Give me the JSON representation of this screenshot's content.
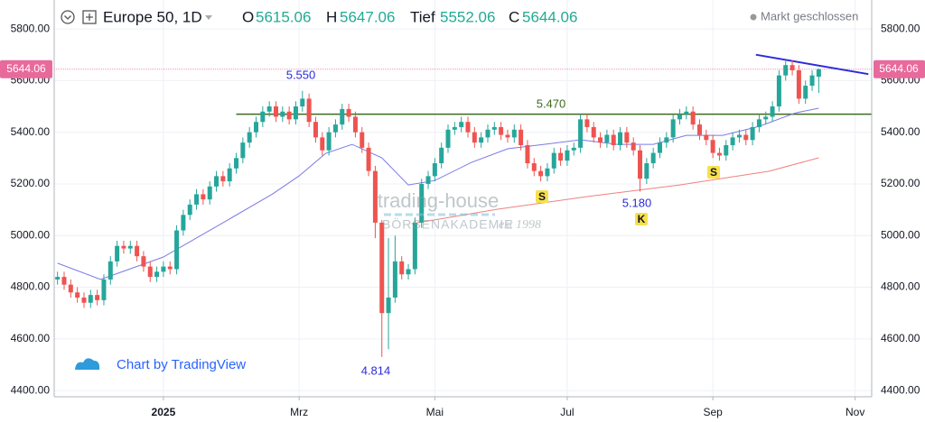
{
  "chart_data": {
    "type": "candlestick",
    "title": "Europe 50, 1D",
    "status": "Markt geschlossen",
    "ohlc_labels": [
      "O",
      "H",
      "Tief",
      "C"
    ],
    "credit": "Chart by TradingView",
    "watermark": [
      "trading-house",
      "BÖRSENAKADEMIE",
      "est 1998"
    ],
    "up_color": "#26a69a",
    "down_color": "#ef5350",
    "last_price_color": "#e8699c",
    "x": [
      -32,
      -30,
      -28,
      -26,
      -24,
      -22,
      -20,
      -18,
      -16,
      -14,
      -12,
      -10,
      -8,
      -6,
      -4,
      -2,
      0,
      2,
      4,
      6,
      8,
      10,
      12,
      14,
      16,
      18,
      20,
      22,
      24,
      26,
      28,
      30,
      32,
      34,
      36,
      38,
      40,
      42,
      44,
      46,
      48,
      50,
      52,
      54,
      56,
      58,
      60,
      62,
      64,
      66,
      68,
      70,
      72,
      74,
      76,
      78,
      80,
      82,
      84,
      86,
      88,
      90,
      92,
      94,
      96,
      98,
      100,
      102,
      104,
      106,
      108,
      110,
      112,
      114,
      116,
      118,
      120,
      122,
      124,
      126,
      128,
      130,
      132,
      134,
      136,
      138,
      140,
      142,
      144,
      146,
      148,
      150,
      152,
      154,
      156,
      158,
      160,
      162,
      164,
      166,
      168,
      170,
      172,
      174,
      176,
      178,
      180,
      182,
      184,
      186,
      188,
      190,
      192,
      194,
      196,
      198
    ],
    "open": [
      4830,
      4840,
      4810,
      4780,
      4760,
      4740,
      4770,
      4750,
      4830,
      4900,
      4960,
      4950,
      4960,
      4920,
      4880,
      4840,
      4860,
      4880,
      4870,
      5020,
      5080,
      5120,
      5160,
      5140,
      5190,
      5230,
      5210,
      5260,
      5300,
      5360,
      5400,
      5440,
      5480,
      5500,
      5460,
      5480,
      5450,
      5500,
      5530,
      5440,
      5380,
      5330,
      5400,
      5430,
      5490,
      5460,
      5400,
      5340,
      5250,
      5050,
      4700,
      4760,
      4900,
      4850,
      4870,
      5050,
      5200,
      5230,
      5280,
      5340,
      5410,
      5420,
      5440,
      5400,
      5360,
      5380,
      5410,
      5420,
      5390,
      5380,
      5410,
      5350,
      5280,
      5250,
      5230,
      5260,
      5320,
      5290,
      5330,
      5340,
      5450,
      5420,
      5380,
      5360,
      5390,
      5350,
      5400,
      5360,
      5330,
      5220,
      5280,
      5320,
      5360,
      5380,
      5450,
      5470,
      5480,
      5430,
      5390,
      5370,
      5320,
      5310,
      5350,
      5380,
      5390,
      5370,
      5420,
      5450,
      5460,
      5500,
      5620,
      5660,
      5640,
      5530,
      5580,
      5615.06
    ],
    "high": [
      4860,
      4860,
      4830,
      4800,
      4780,
      4790,
      4790,
      4850,
      4920,
      4980,
      4980,
      4980,
      4980,
      4940,
      4900,
      4880,
      4900,
      4900,
      5040,
      5100,
      5140,
      5180,
      5180,
      5210,
      5250,
      5250,
      5280,
      5320,
      5380,
      5420,
      5460,
      5500,
      5520,
      5520,
      5500,
      5500,
      5520,
      5560,
      5550,
      5460,
      5400,
      5420,
      5450,
      5510,
      5510,
      5480,
      5420,
      5360,
      5270,
      5060,
      4990,
      5000,
      4920,
      4890,
      5070,
      5220,
      5250,
      5300,
      5360,
      5430,
      5440,
      5460,
      5460,
      5420,
      5400,
      5430,
      5440,
      5440,
      5410,
      5430,
      5430,
      5370,
      5300,
      5270,
      5280,
      5340,
      5340,
      5350,
      5360,
      5470,
      5470,
      5440,
      5400,
      5410,
      5410,
      5420,
      5420,
      5380,
      5350,
      5300,
      5340,
      5380,
      5400,
      5470,
      5490,
      5500,
      5500,
      5450,
      5410,
      5390,
      5340,
      5370,
      5400,
      5410,
      5410,
      5440,
      5470,
      5480,
      5520,
      5640,
      5680,
      5680,
      5660,
      5600,
      5640,
      5647.06
    ],
    "low": [
      4810,
      4790,
      4760,
      4740,
      4720,
      4720,
      4730,
      4730,
      4810,
      4880,
      4930,
      4930,
      4900,
      4860,
      4820,
      4820,
      4840,
      4850,
      4850,
      5000,
      5060,
      5100,
      5120,
      5120,
      5170,
      5190,
      5190,
      5240,
      5280,
      5340,
      5380,
      5420,
      5460,
      5440,
      5440,
      5430,
      5430,
      5480,
      5420,
      5360,
      5310,
      5310,
      5380,
      5410,
      5440,
      5380,
      5320,
      5230,
      4990,
      4530,
      4560,
      4740,
      4830,
      4830,
      4850,
      5030,
      5180,
      5210,
      5260,
      5320,
      5390,
      5400,
      5380,
      5340,
      5340,
      5360,
      5390,
      5370,
      5360,
      5360,
      5330,
      5260,
      5230,
      5210,
      5210,
      5240,
      5270,
      5270,
      5310,
      5320,
      5400,
      5360,
      5340,
      5340,
      5330,
      5330,
      5340,
      5310,
      5170,
      5200,
      5260,
      5300,
      5340,
      5360,
      5430,
      5450,
      5410,
      5370,
      5350,
      5300,
      5290,
      5290,
      5330,
      5360,
      5350,
      5350,
      5400,
      5430,
      5440,
      5480,
      5600,
      5620,
      5510,
      5510,
      5560,
      5552.06
    ],
    "close": [
      4840,
      4810,
      4780,
      4760,
      4740,
      4770,
      4750,
      4830,
      4900,
      4960,
      4950,
      4960,
      4920,
      4880,
      4840,
      4860,
      4880,
      4870,
      5020,
      5080,
      5120,
      5160,
      5140,
      5190,
      5230,
      5210,
      5260,
      5300,
      5360,
      5400,
      5440,
      5480,
      5500,
      5460,
      5480,
      5450,
      5500,
      5530,
      5440,
      5380,
      5330,
      5400,
      5430,
      5490,
      5460,
      5400,
      5340,
      5250,
      5050,
      4700,
      4760,
      4900,
      4850,
      4870,
      5050,
      5200,
      5230,
      5280,
      5340,
      5410,
      5420,
      5440,
      5400,
      5360,
      5380,
      5410,
      5420,
      5390,
      5380,
      5410,
      5350,
      5280,
      5250,
      5230,
      5260,
      5320,
      5290,
      5330,
      5340,
      5450,
      5420,
      5380,
      5360,
      5390,
      5350,
      5400,
      5360,
      5330,
      5220,
      5280,
      5320,
      5360,
      5380,
      5450,
      5470,
      5480,
      5430,
      5390,
      5370,
      5320,
      5310,
      5350,
      5380,
      5390,
      5370,
      5420,
      5450,
      5460,
      5500,
      5620,
      5660,
      5640,
      5530,
      5580,
      5620,
      5644.06
    ],
    "xlim": [
      -33,
      214
    ],
    "xticks": [
      {
        "value": 0,
        "label": "2025"
      },
      {
        "value": 41,
        "label": "Mrz"
      },
      {
        "value": 82,
        "label": "Mai"
      },
      {
        "value": 122,
        "label": "Jul"
      },
      {
        "value": 166,
        "label": "Sep"
      },
      {
        "value": 209,
        "label": "Nov"
      }
    ],
    "ylim": [
      4376,
      5912
    ],
    "yticks": [
      {
        "value": 4400,
        "label": "4400.00"
      },
      {
        "value": 4600,
        "label": "4600.00"
      },
      {
        "value": 4800,
        "label": "4800.00"
      },
      {
        "value": 5000,
        "label": "5000.00"
      },
      {
        "value": 5200,
        "label": "5200.00"
      },
      {
        "value": 5400,
        "label": "5400.00"
      },
      {
        "value": 5600,
        "label": "5600.00"
      },
      {
        "value": 5800,
        "label": "5800.00"
      }
    ],
    "grid": true,
    "overlays": [
      {
        "color": "#7a7ae6",
        "x": [
          -32,
          -19,
          0,
          19,
          33,
          41,
          49,
          57,
          66,
          74,
          82,
          93,
          104,
          115,
          126,
          137,
          148,
          158,
          169,
          180,
          191,
          198
        ],
        "values": [
          4893,
          4830,
          4917,
          5057,
          5161,
          5231,
          5318,
          5353,
          5301,
          5196,
          5213,
          5283,
          5336,
          5353,
          5371,
          5353,
          5353,
          5388,
          5388,
          5423,
          5475,
          5493
        ]
      },
      {
        "color": "#f08080",
        "x": [
          75,
          101,
          128,
          156,
          183,
          198
        ],
        "values": [
          5046,
          5102,
          5151,
          5196,
          5249,
          5301
        ]
      },
      {
        "color": "#2b2bdb",
        "x": [
          179,
          213
        ],
        "values": [
          5700,
          5625
        ]
      }
    ],
    "hlines": [
      {
        "value": 5470,
        "color": "#3d6b1f",
        "x_start": 22
      }
    ],
    "annotations": [
      "5.550",
      "5.470",
      "4.814",
      "5.180",
      "S",
      "S",
      "K"
    ]
  }
}
